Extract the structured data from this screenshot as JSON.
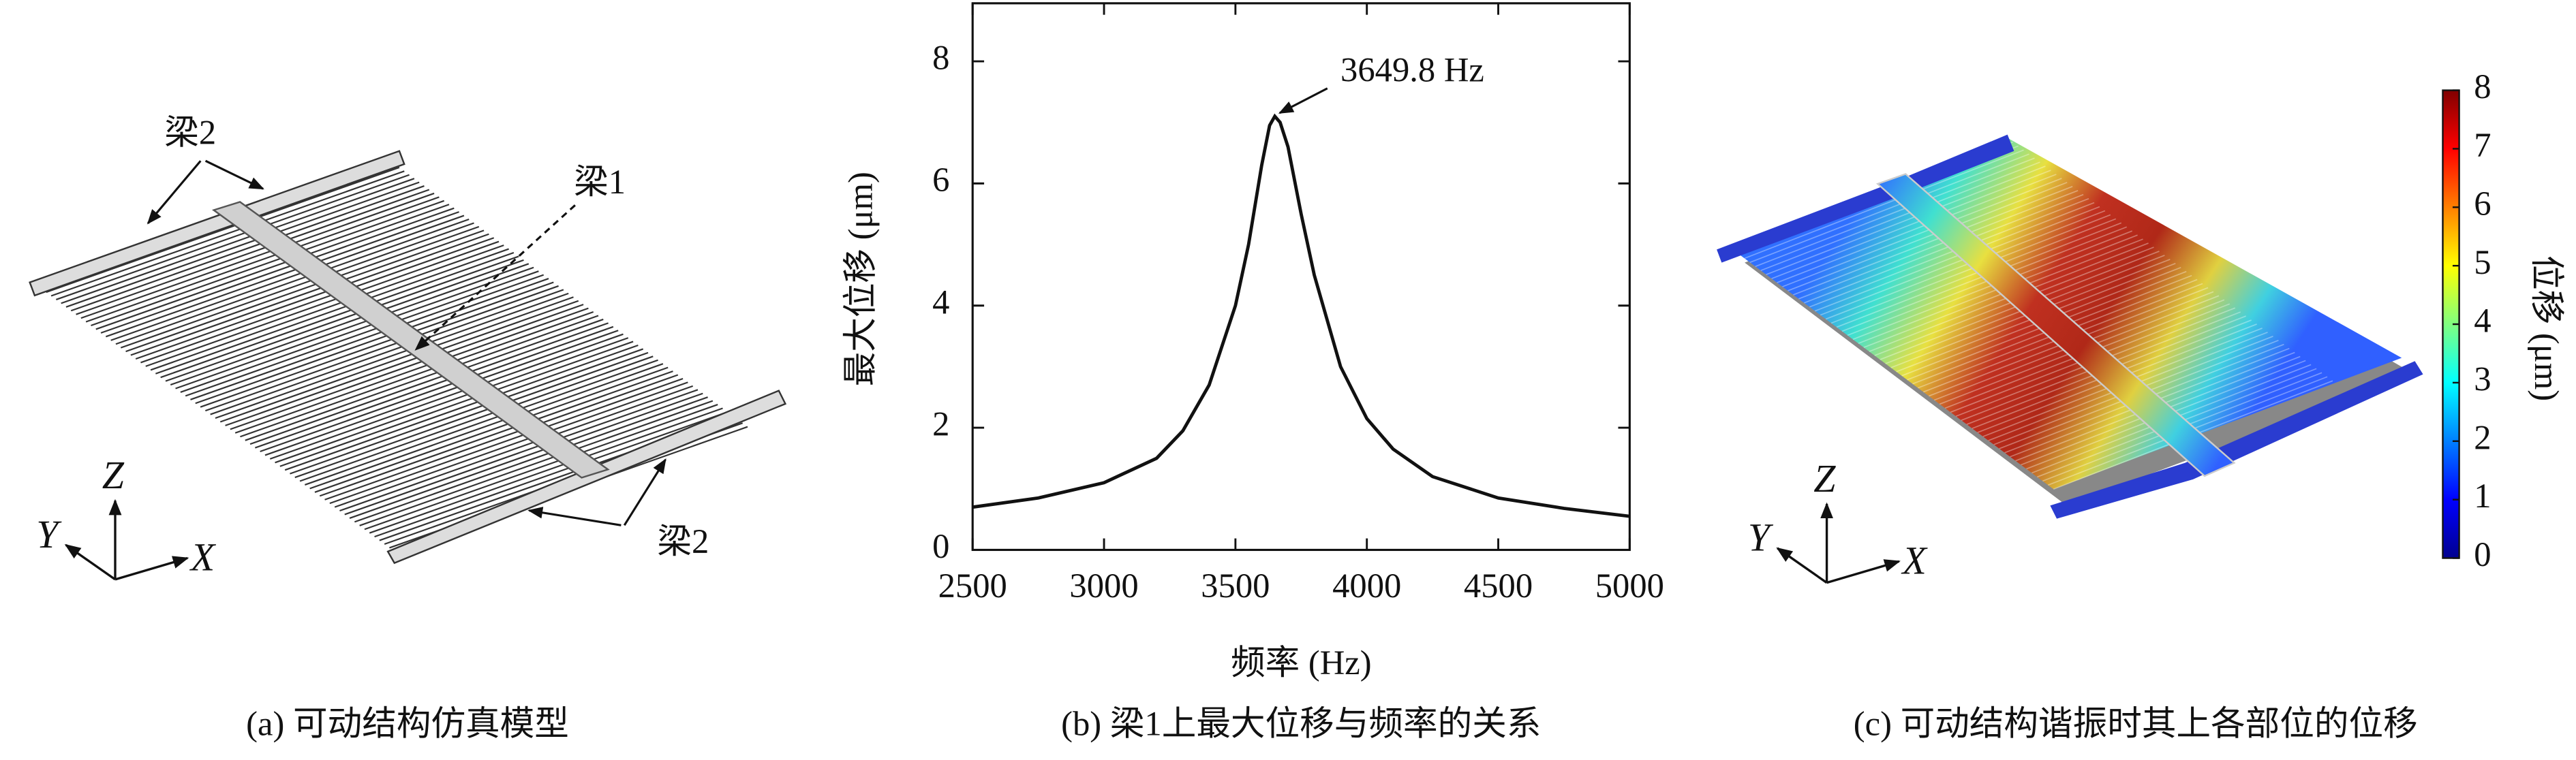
{
  "panel_a": {
    "labels": [
      "梁2",
      "梁1",
      "梁2"
    ],
    "axes": [
      "Z",
      "Y",
      "X"
    ],
    "caption": "(a) 可动结构仿真模型"
  },
  "chart_data": {
    "type": "line",
    "xlabel": "频率 (Hz)",
    "ylabel": "最大位移 (μm)",
    "x": [
      2500,
      2750,
      3000,
      3200,
      3300,
      3400,
      3500,
      3550,
      3600,
      3630,
      3649.8,
      3670,
      3700,
      3750,
      3800,
      3900,
      4000,
      4100,
      4250,
      4500,
      4750,
      5000
    ],
    "values": [
      0.7,
      0.85,
      1.1,
      1.5,
      1.95,
      2.7,
      4.0,
      5.0,
      6.3,
      6.95,
      7.1,
      7.0,
      6.6,
      5.5,
      4.5,
      3.0,
      2.15,
      1.65,
      1.2,
      0.85,
      0.68,
      0.55
    ],
    "color": "#111111",
    "xlim": [
      2500,
      5000
    ],
    "xticks": [
      2500,
      3000,
      3500,
      4000,
      4500,
      5000
    ],
    "ylim": [
      0,
      8.95
    ],
    "yticks": [
      0,
      2,
      4,
      6,
      8
    ],
    "annotations": [
      {
        "text": "3649.8 Hz",
        "x": 3649.8,
        "y": 7.1
      }
    ],
    "caption": "(b) 梁1上最大位移与频率的关系"
  },
  "panel_c": {
    "colorbar": {
      "label": "位移 (μm)",
      "clim": [
        0,
        8
      ],
      "ticks": [
        0,
        1,
        2,
        3,
        4,
        5,
        6,
        7,
        8
      ]
    },
    "axes": [
      "Z",
      "Y",
      "X"
    ],
    "caption": "(c) 可动结构谐振时其上各部位的位移"
  }
}
